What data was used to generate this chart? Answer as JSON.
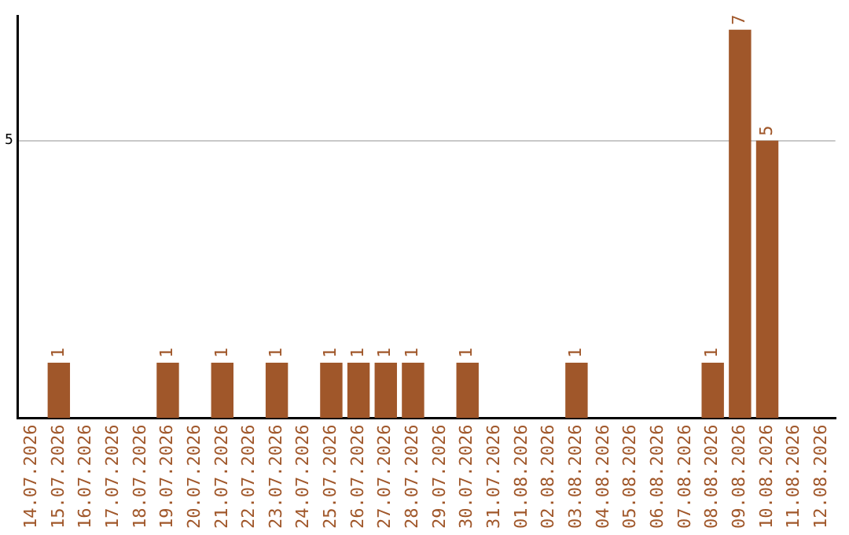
{
  "chart_data": {
    "type": "bar",
    "categories": [
      "14.07.2026",
      "15.07.2026",
      "16.07.2026",
      "17.07.2026",
      "18.07.2026",
      "19.07.2026",
      "20.07.2026",
      "21.07.2026",
      "22.07.2026",
      "23.07.2026",
      "24.07.2026",
      "25.07.2026",
      "26.07.2026",
      "27.07.2026",
      "28.07.2026",
      "29.07.2026",
      "30.07.2026",
      "31.07.2026",
      "01.08.2026",
      "02.08.2026",
      "03.08.2026",
      "04.08.2026",
      "05.08.2026",
      "06.08.2026",
      "07.08.2026",
      "08.08.2026",
      "09.08.2026",
      "10.08.2026",
      "11.08.2026",
      "12.08.2026"
    ],
    "values": [
      null,
      1,
      null,
      null,
      null,
      1,
      null,
      1,
      null,
      1,
      null,
      1,
      1,
      1,
      1,
      null,
      1,
      null,
      null,
      null,
      1,
      null,
      null,
      null,
      null,
      1,
      7,
      5,
      null,
      null
    ],
    "color": "#a0572a",
    "ylim": [
      0,
      7.25
    ],
    "yticks": [
      5
    ],
    "grid": "y",
    "data_labels": true,
    "legend": false
  }
}
